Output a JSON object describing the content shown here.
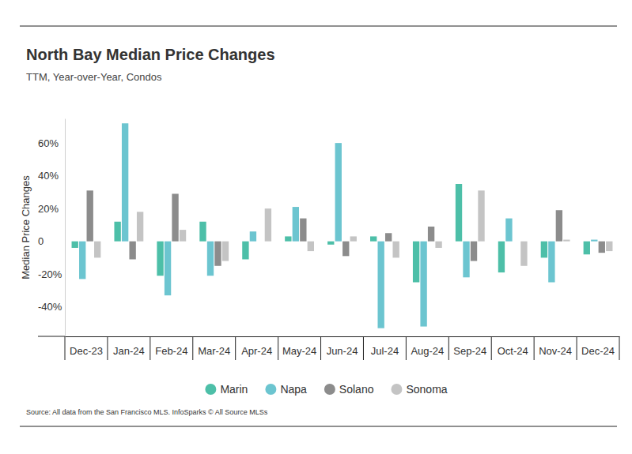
{
  "chart_data": {
    "type": "bar",
    "title": "North Bay Median Price Changes",
    "subtitle": "TTM, Year-over-Year, Condos",
    "y_label": "Median Price Changes",
    "source": "Source:  All data from the San Francisco MLS. InfoSparks © All Source MLSs",
    "categories": [
      "Dec-23",
      "Jan-24",
      "Feb-24",
      "Mar-24",
      "Apr-24",
      "May-24",
      "Jun-24",
      "Jul-24",
      "Aug-24",
      "Sep-24",
      "Oct-24",
      "Nov-24",
      "Dec-24"
    ],
    "series": [
      {
        "name": "Marin",
        "color": "#4dbfa8",
        "values": [
          -4,
          12,
          -21,
          12,
          -11,
          3,
          -2,
          3,
          -25,
          35,
          -19,
          -10,
          -8
        ]
      },
      {
        "name": "Napa",
        "color": "#6cc5d0",
        "values": [
          -23,
          72,
          -33,
          -21,
          6,
          21,
          60,
          -53,
          -52,
          -22,
          14,
          -25,
          1
        ]
      },
      {
        "name": "Solano",
        "color": "#8c8c8c",
        "values": [
          31,
          -11,
          29,
          -15,
          null,
          14,
          -9,
          5,
          9,
          -12,
          null,
          19,
          -7
        ]
      },
      {
        "name": "Sonoma",
        "color": "#c4c4c4",
        "values": [
          -10,
          18,
          7,
          -12,
          20,
          -6,
          3,
          -10,
          -4,
          31,
          -15,
          1,
          -6
        ]
      }
    ],
    "ylim": [
      -58,
      75
    ],
    "yticks": [
      {
        "value": -40,
        "label": "-40%"
      },
      {
        "value": -20,
        "label": "-20%"
      },
      0,
      {
        "value": 20,
        "label": "20%"
      },
      {
        "value": 40,
        "label": "40%"
      },
      {
        "value": 60,
        "label": "60%"
      }
    ],
    "grid": false,
    "legend": "bottom"
  }
}
